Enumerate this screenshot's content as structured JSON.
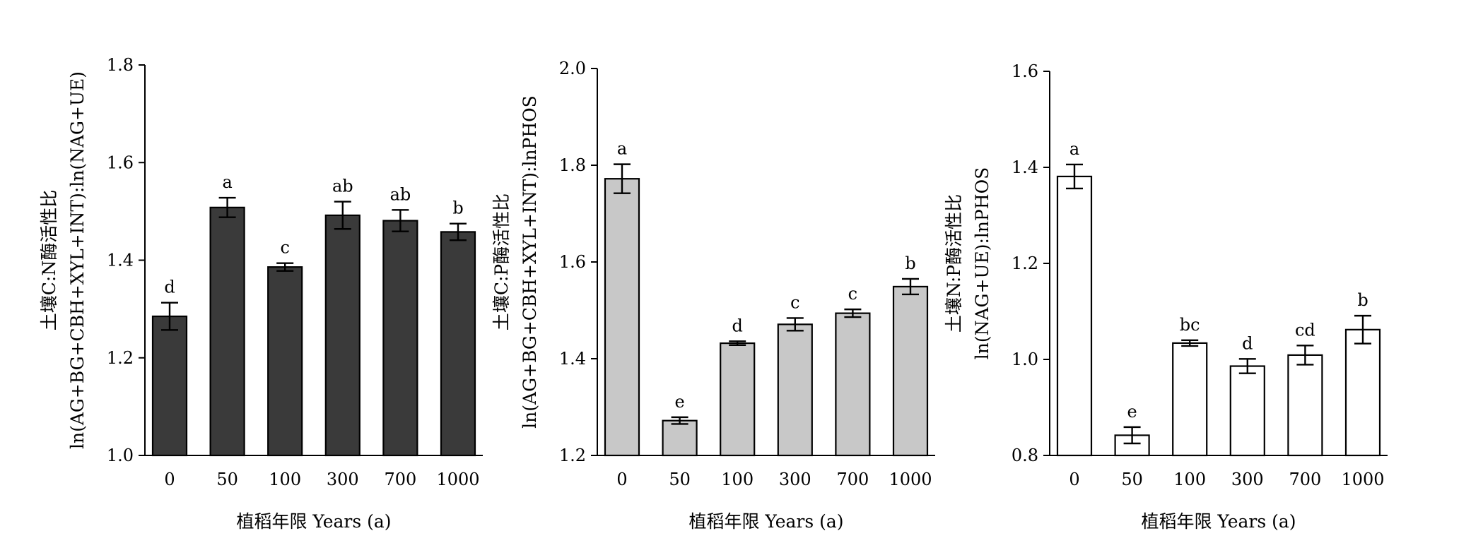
{
  "chart_data": [
    {
      "type": "bar",
      "title": "",
      "ylabel_lines": [
        "土壤C:N酶活性比",
        "ln(AG+BG+CBH+XYL+INT):ln(NAG+UE)"
      ],
      "xlabel": "植稻年限 Years (a)",
      "categories": [
        "0",
        "50",
        "100",
        "300",
        "700",
        "1000"
      ],
      "values": [
        1.285,
        1.508,
        1.386,
        1.492,
        1.481,
        1.458
      ],
      "errors": [
        0.028,
        0.02,
        0.008,
        0.028,
        0.022,
        0.017
      ],
      "significance": [
        "d",
        "a",
        "c",
        "ab",
        "ab",
        "b"
      ],
      "ylim": [
        1.0,
        1.8
      ],
      "yticks": [
        "1.0",
        "1.2",
        "1.4",
        "1.6",
        "1.8"
      ],
      "bar_color": "#3a3a3a",
      "grid": false
    },
    {
      "type": "bar",
      "title": "",
      "ylabel_lines": [
        "土壤C:P酶活性比",
        "ln(AG+BG+CBH+XYL+INT):lnPHOS"
      ],
      "xlabel": "植稻年限 Years (a)",
      "categories": [
        "0",
        "50",
        "100",
        "300",
        "700",
        "1000"
      ],
      "values": [
        1.772,
        1.272,
        1.432,
        1.471,
        1.494,
        1.549
      ],
      "errors": [
        0.03,
        0.007,
        0.004,
        0.013,
        0.008,
        0.016
      ],
      "significance": [
        "a",
        "e",
        "d",
        "c",
        "c",
        "b"
      ],
      "ylim": [
        1.2,
        2.0
      ],
      "yticks": [
        "1.2",
        "1.4",
        "1.6",
        "1.8",
        "2.0"
      ],
      "bar_color": "#c8c8c8",
      "grid": false
    },
    {
      "type": "bar",
      "title": "",
      "ylabel_lines": [
        "土壤N:P酶活性比",
        "ln(NAG+UE):lnPHOS"
      ],
      "xlabel": "植稻年限 Years (a)",
      "categories": [
        "0",
        "50",
        "100",
        "300",
        "700",
        "1000"
      ],
      "values": [
        1.381,
        0.842,
        1.034,
        0.986,
        1.009,
        1.062
      ],
      "errors": [
        0.025,
        0.017,
        0.006,
        0.015,
        0.02,
        0.029
      ],
      "significance": [
        "a",
        "e",
        "bc",
        "d",
        "cd",
        "b"
      ],
      "ylim": [
        0.8,
        1.6
      ],
      "yticks": [
        "0.8",
        "1.0",
        "1.2",
        "1.4",
        "1.6"
      ],
      "bar_color": "#ffffff",
      "grid": false
    }
  ]
}
